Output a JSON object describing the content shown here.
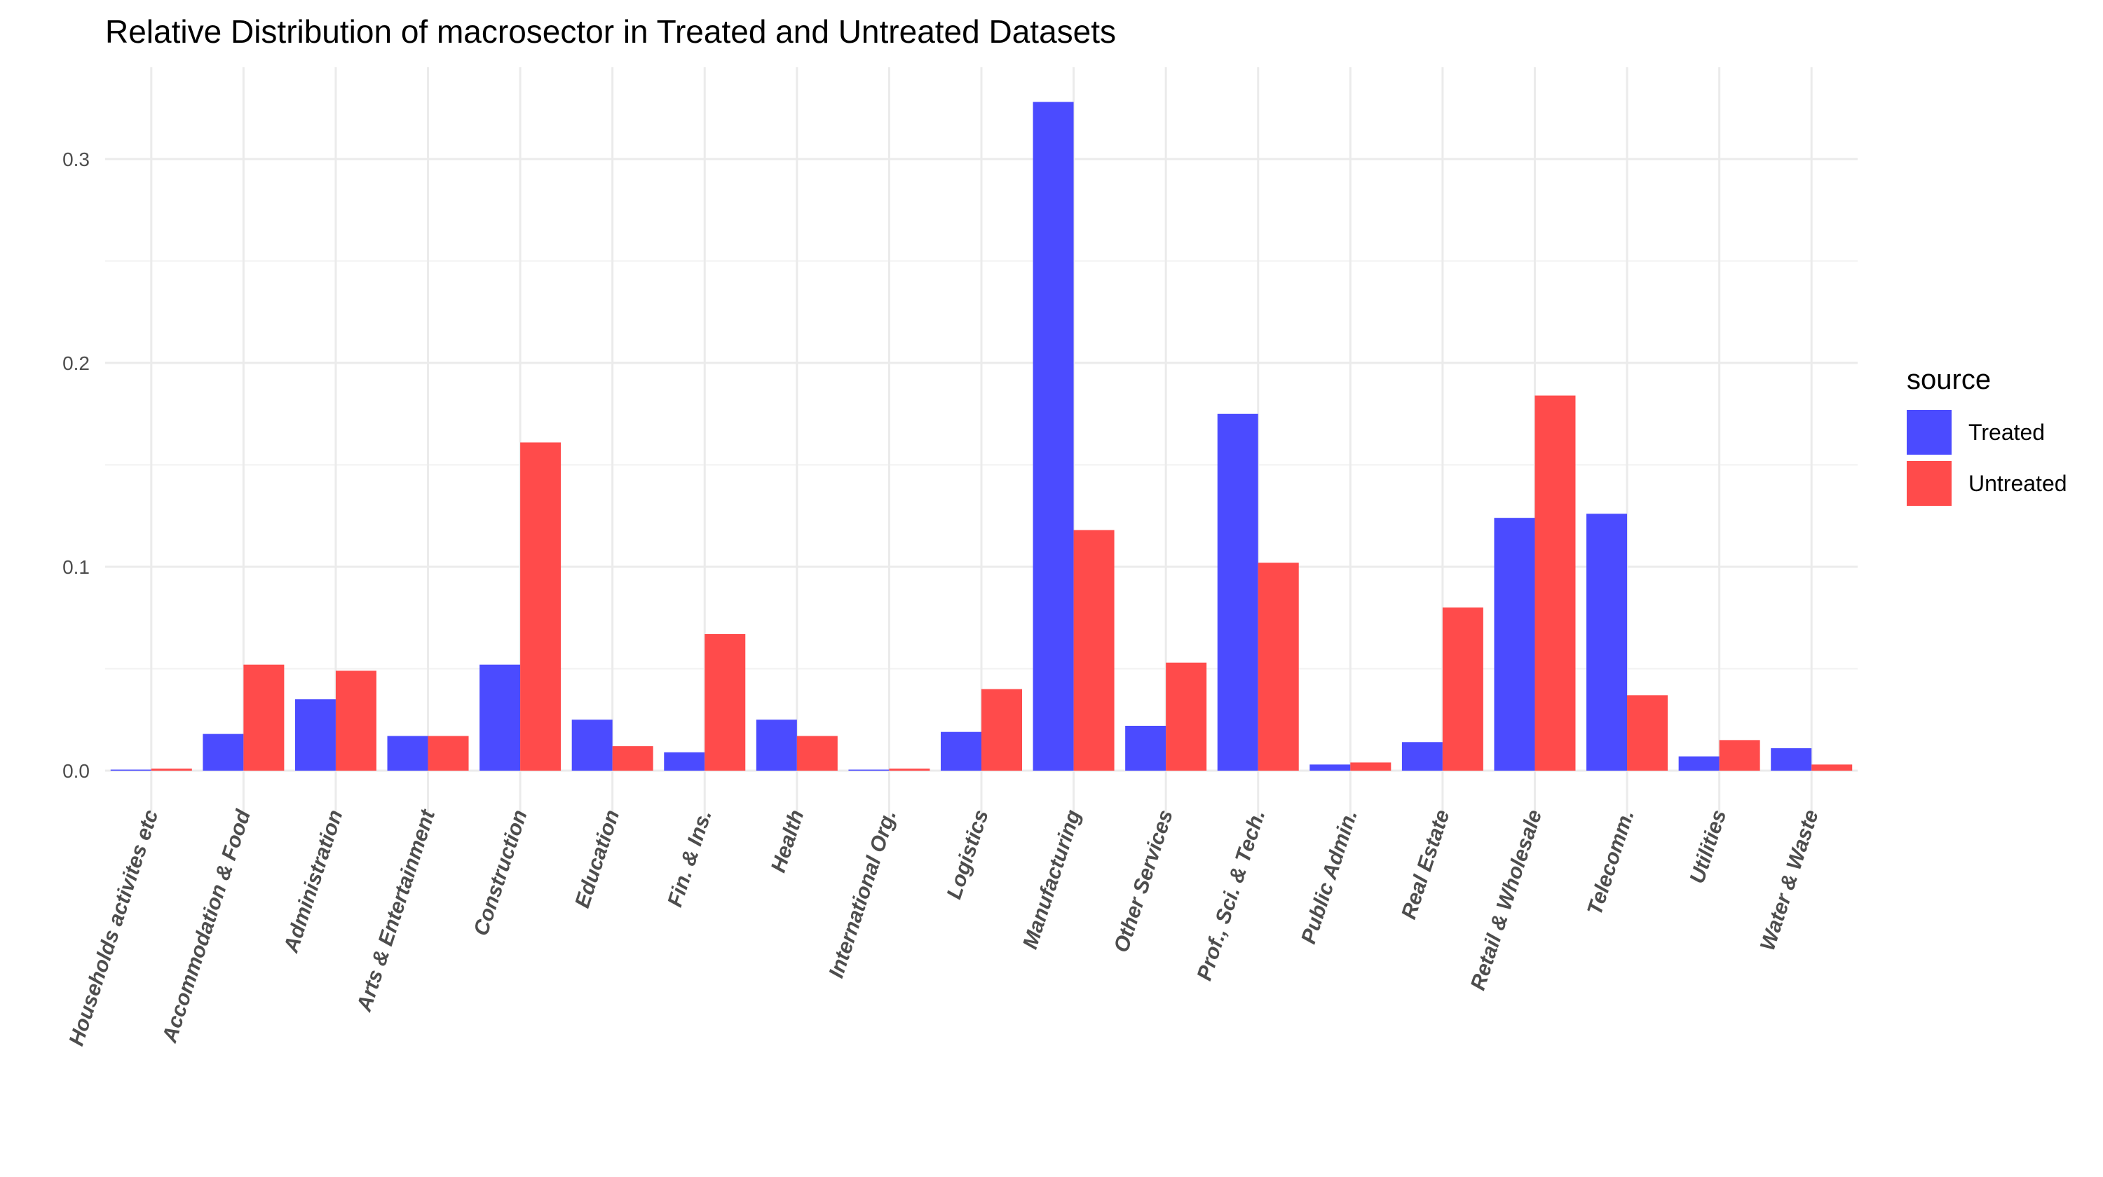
{
  "chart_data": {
    "type": "bar",
    "title": "Relative Distribution of macrosector in Treated and Untreated Datasets",
    "xlabel": "",
    "ylabel": "",
    "ylim": [
      -0.025,
      0.345
    ],
    "y_ticks": [
      0.0,
      0.1,
      0.2,
      0.3
    ],
    "y_tick_labels": [
      "0.0",
      "0.1",
      "0.2",
      "0.3"
    ],
    "grid": true,
    "legend": {
      "title": "source",
      "placement": "right"
    },
    "categories": [
      "Households activites etc",
      "Accommodation & Food",
      "Administration",
      "Arts & Entertainment",
      "Construction",
      "Education",
      "Fin. & Ins.",
      "Health",
      "International Org.",
      "Logistics",
      "Manufacturing",
      "Other Services",
      "Prof., Sci. & Tech.",
      "Public Admin.",
      "Real Estate",
      "Retail & Wholesale",
      "Telecomm.",
      "Utilities",
      "Water & Waste"
    ],
    "series": [
      {
        "name": "Treated",
        "color": "#4b4bff",
        "values": [
          0.0,
          0.018,
          0.035,
          0.017,
          0.052,
          0.025,
          0.009,
          0.025,
          0.0,
          0.019,
          0.328,
          0.022,
          0.175,
          0.003,
          0.014,
          0.124,
          0.126,
          0.007,
          0.011
        ]
      },
      {
        "name": "Untreated",
        "color": "#ff4b4b",
        "values": [
          0.001,
          0.052,
          0.049,
          0.017,
          0.161,
          0.012,
          0.067,
          0.017,
          0.001,
          0.04,
          0.118,
          0.053,
          0.102,
          0.004,
          0.08,
          0.184,
          0.037,
          0.015,
          0.003
        ]
      }
    ]
  }
}
